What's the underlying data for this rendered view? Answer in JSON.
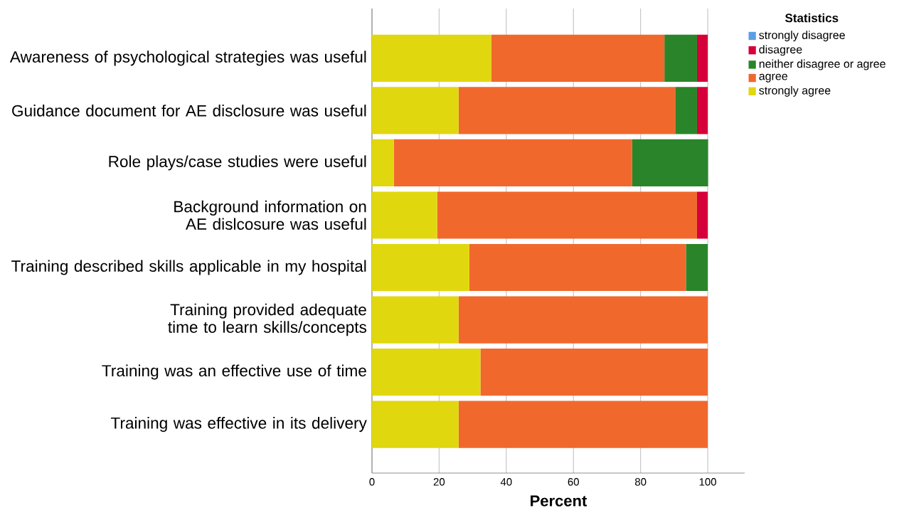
{
  "chart_data": {
    "type": "bar",
    "orientation": "horizontal",
    "stacked": true,
    "categories": [
      "Awareness of psychological strategies was useful",
      "Guidance document for AE disclosure was useful",
      "Role plays/case studies were useful",
      "Background information on AE dislcosure was useful",
      "Training described skills applicable in my hospital",
      "Training provided adequate time to learn skills/concepts",
      "Training was an effective use of time",
      "Training was effective in its delivery"
    ],
    "series": [
      {
        "name": "strongly agree",
        "color": "#e1d70f",
        "values": [
          35.5,
          25.8,
          6.5,
          19.4,
          29.0,
          25.8,
          32.3,
          25.8
        ]
      },
      {
        "name": "agree",
        "color": "#f1682d",
        "values": [
          51.6,
          64.5,
          71.0,
          77.4,
          64.5,
          74.2,
          67.7,
          74.2
        ]
      },
      {
        "name": "neither disagree or agree",
        "color": "#2a852a",
        "values": [
          9.7,
          6.5,
          22.6,
          0,
          6.5,
          0,
          0,
          0
        ]
      },
      {
        "name": "disagree",
        "color": "#d6003a",
        "values": [
          3.2,
          3.2,
          0,
          3.2,
          0,
          0,
          0,
          0
        ]
      },
      {
        "name": "strongly disagree",
        "color": "#5b9de8",
        "values": [
          0,
          0,
          0,
          0,
          0,
          0,
          0,
          0
        ]
      }
    ],
    "xlabel": "Percent",
    "legend_title": "Statistics",
    "legend": "top right",
    "xlim": [
      0,
      111
    ],
    "xticks": [
      0,
      20,
      40,
      60,
      80,
      100
    ],
    "grid": "x"
  }
}
